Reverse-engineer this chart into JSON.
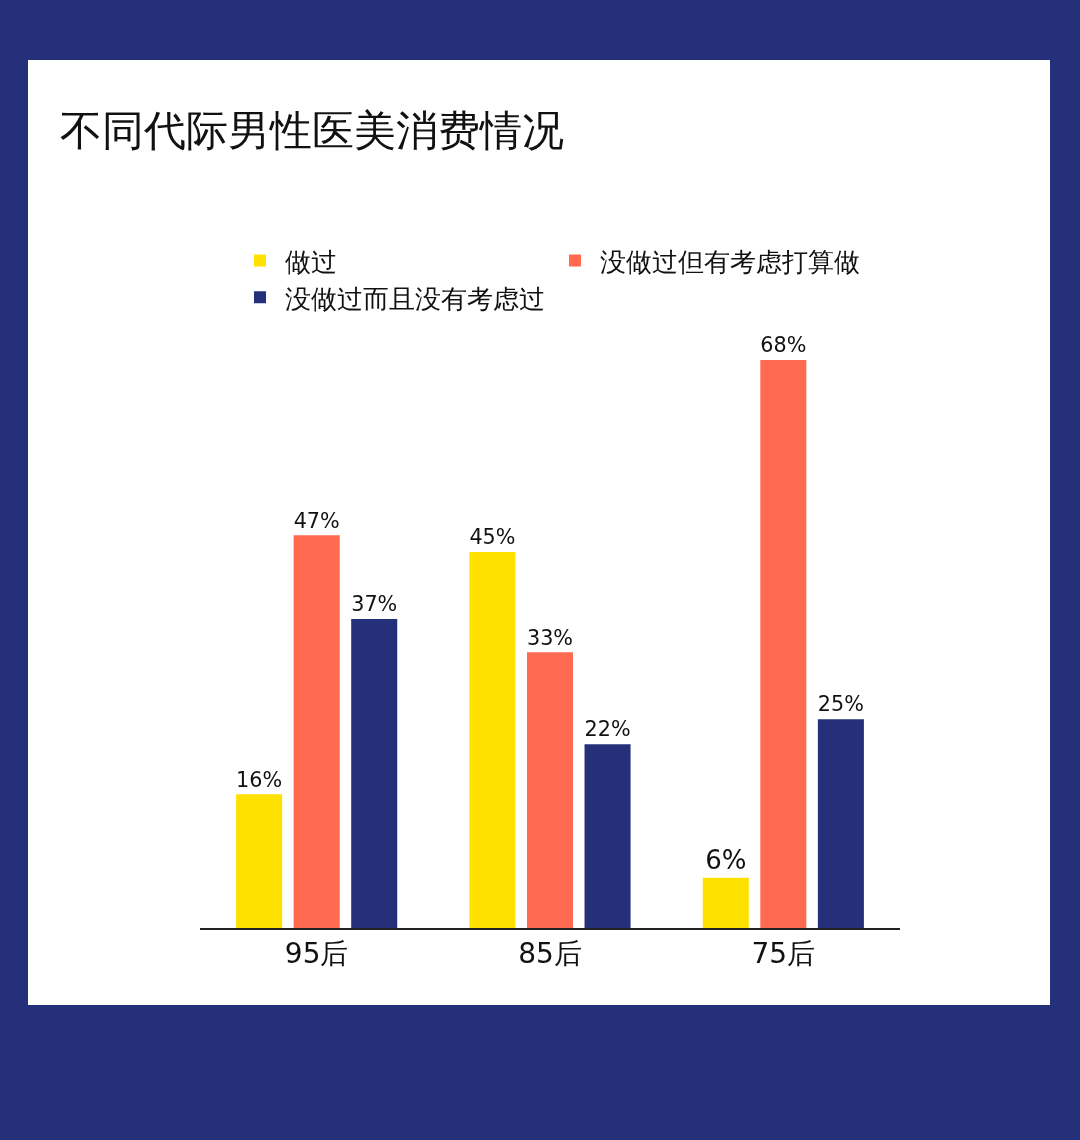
{
  "chart_data": {
    "type": "bar",
    "title": "不同代际男性医美消费情况",
    "categories": [
      "95后",
      "85后",
      "75后"
    ],
    "legend": "top",
    "series": [
      {
        "name": "做过",
        "color": "#ffe100",
        "values": [
          16,
          45,
          6
        ],
        "value_labels": [
          "16%",
          "45%",
          "6%"
        ]
      },
      {
        "name": "没做过但有考虑打算做",
        "color": "#ff6a50",
        "values": [
          47,
          33,
          68
        ],
        "value_labels": [
          "47%",
          "33%",
          "68%"
        ]
      },
      {
        "name": "没做过而且没有考虑过",
        "color": "#25307a",
        "values": [
          37,
          22,
          25
        ],
        "value_labels": [
          "37%",
          "22%",
          "25%"
        ]
      }
    ]
  }
}
